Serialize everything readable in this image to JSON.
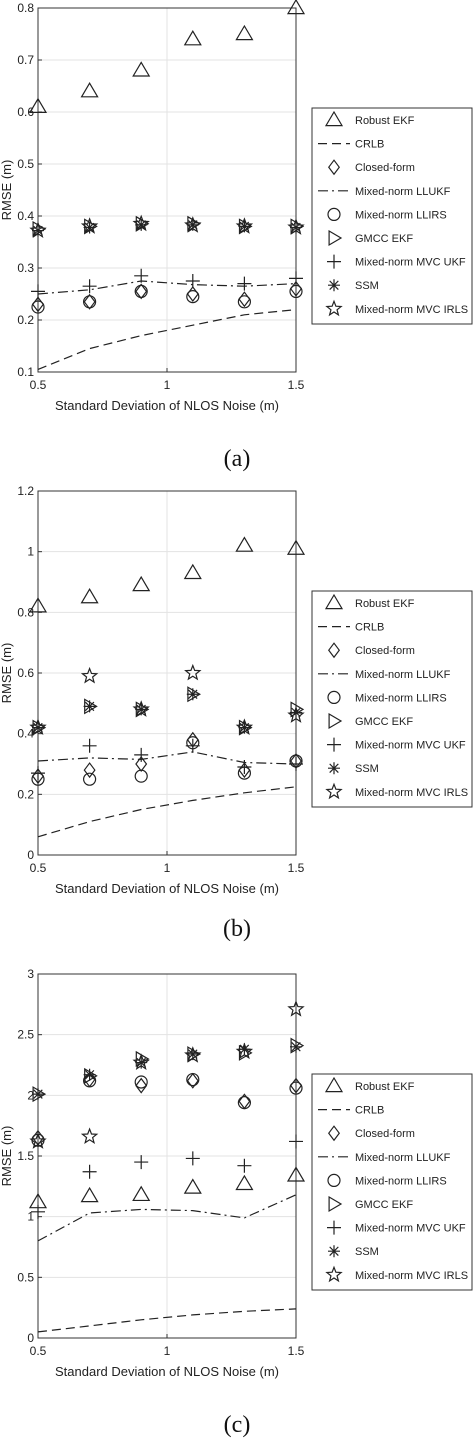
{
  "figure": {
    "captions": [
      "(a)",
      "(b)",
      "(c)"
    ]
  },
  "legend_entries": [
    {
      "label": "Robust EKF",
      "marker": "triangle-up"
    },
    {
      "label": "CRLB",
      "line": "dashed"
    },
    {
      "label": "Closed-form",
      "marker": "diamond"
    },
    {
      "label": "Mixed-norm LLUKF",
      "line": "dashdot"
    },
    {
      "label": "Mixed-norm LLIRS",
      "marker": "circle"
    },
    {
      "label": "GMCC EKF",
      "marker": "triangle-right"
    },
    {
      "label": "Mixed-norm MVC UKF",
      "marker": "plus"
    },
    {
      "label": "SSM",
      "marker": "asterisk"
    },
    {
      "label": "Mixed-norm MVC IRLS",
      "marker": "pentagram"
    }
  ],
  "chart_data": [
    {
      "type": "line",
      "caption": "(a)",
      "xlabel": "Standard Deviation of NLOS Noise (m)",
      "ylabel": "RMSE (m)",
      "xlim": [
        0.5,
        1.5
      ],
      "ylim": [
        0.1,
        0.8
      ],
      "xticks": [
        0.5,
        1,
        1.5
      ],
      "xtick_labels": [
        "0.5",
        "1",
        "1.5"
      ],
      "yticks": [
        0.1,
        0.2,
        0.3,
        0.4,
        0.5,
        0.6,
        0.7,
        0.8
      ],
      "ytick_labels": [
        "0.1",
        "0.2",
        "0.3",
        "0.4",
        "0.5",
        "0.6",
        "0.7",
        "0.8"
      ],
      "grid": true,
      "legend": "right, outside",
      "x": [
        0.5,
        0.7,
        0.9,
        1.1,
        1.3,
        1.5
      ],
      "series": [
        {
          "name": "Robust EKF",
          "values": [
            0.61,
            0.64,
            0.68,
            0.74,
            0.75,
            0.8
          ]
        },
        {
          "name": "CRLB",
          "values": [
            0.105,
            0.145,
            0.17,
            0.19,
            0.21,
            0.22
          ]
        },
        {
          "name": "Closed-form",
          "values": [
            0.23,
            0.235,
            0.255,
            0.25,
            0.24,
            0.26
          ]
        },
        {
          "name": "Mixed-norm LLUKF",
          "values": [
            0.25,
            0.258,
            0.275,
            0.268,
            0.265,
            0.27
          ]
        },
        {
          "name": "Mixed-norm LLIRS",
          "values": [
            0.225,
            0.235,
            0.255,
            0.245,
            0.235,
            0.255
          ]
        },
        {
          "name": "GMCC EKF",
          "values": [
            0.375,
            0.38,
            0.385,
            0.385,
            0.38,
            0.38
          ]
        },
        {
          "name": "Mixed-norm MVC UKF",
          "values": [
            0.255,
            0.265,
            0.285,
            0.275,
            0.27,
            0.28
          ]
        },
        {
          "name": "SSM",
          "values": [
            0.372,
            0.378,
            0.383,
            0.383,
            0.38,
            0.378
          ]
        },
        {
          "name": "Mixed-norm MVC IRLS",
          "values": [
            0.372,
            0.38,
            0.385,
            0.382,
            0.38,
            0.378
          ]
        }
      ]
    },
    {
      "type": "line",
      "caption": "(b)",
      "xlabel": "Standard Deviation of NLOS Noise (m)",
      "ylabel": "RMSE (m)",
      "xlim": [
        0.5,
        1.5
      ],
      "ylim": [
        0,
        1.2
      ],
      "xticks": [
        0.5,
        1,
        1.5
      ],
      "xtick_labels": [
        "0.5",
        "1",
        "1.5"
      ],
      "yticks": [
        0,
        0.2,
        0.4,
        0.6,
        0.8,
        1,
        1.2
      ],
      "ytick_labels": [
        "0",
        "0.2",
        "0.4",
        "0.6",
        "0.8",
        "1",
        "1.2"
      ],
      "grid": true,
      "legend": "right, outside",
      "x": [
        0.5,
        0.7,
        0.9,
        1.1,
        1.3,
        1.5
      ],
      "series": [
        {
          "name": "Robust EKF",
          "values": [
            0.82,
            0.85,
            0.89,
            0.93,
            1.02,
            1.01
          ]
        },
        {
          "name": "CRLB",
          "values": [
            0.06,
            0.11,
            0.15,
            0.18,
            0.205,
            0.225
          ]
        },
        {
          "name": "Closed-form",
          "values": [
            0.26,
            0.28,
            0.3,
            0.38,
            0.28,
            0.31
          ]
        },
        {
          "name": "Mixed-norm LLUKF",
          "values": [
            0.31,
            0.32,
            0.315,
            0.34,
            0.305,
            0.3
          ]
        },
        {
          "name": "Mixed-norm LLIRS",
          "values": [
            0.25,
            0.25,
            0.26,
            0.37,
            0.27,
            0.31
          ]
        },
        {
          "name": "GMCC EKF",
          "values": [
            0.42,
            0.49,
            0.48,
            0.53,
            0.42,
            0.48
          ]
        },
        {
          "name": "Mixed-norm MVC UKF",
          "values": [
            0.27,
            0.36,
            0.33,
            0.36,
            0.29,
            0.3
          ]
        },
        {
          "name": "SSM",
          "values": [
            0.42,
            0.49,
            0.48,
            0.53,
            0.42,
            0.47
          ]
        },
        {
          "name": "Mixed-norm MVC IRLS",
          "values": [
            0.42,
            0.59,
            0.48,
            0.6,
            0.42,
            0.46
          ]
        }
      ]
    },
    {
      "type": "line",
      "caption": "(c)",
      "xlabel": "Standard Deviation of NLOS Noise (m)",
      "ylabel": "RMSE (m)",
      "xlim": [
        0.5,
        1.5
      ],
      "ylim": [
        0,
        3
      ],
      "xticks": [
        0.5,
        1,
        1.5
      ],
      "xtick_labels": [
        "0.5",
        "1",
        "1.5"
      ],
      "yticks": [
        0,
        0.5,
        1,
        1.5,
        2,
        2.5,
        3
      ],
      "ytick_labels": [
        "0",
        "0.5",
        "1",
        "1.5",
        "2",
        "2.5",
        "3"
      ],
      "grid": true,
      "legend": "right, outside",
      "x": [
        0.5,
        0.7,
        0.9,
        1.1,
        1.3,
        1.5
      ],
      "series": [
        {
          "name": "Robust EKF",
          "values": [
            1.12,
            1.17,
            1.18,
            1.24,
            1.27,
            1.34
          ]
        },
        {
          "name": "CRLB",
          "values": [
            0.05,
            0.1,
            0.15,
            0.19,
            0.22,
            0.24
          ]
        },
        {
          "name": "Closed-form",
          "values": [
            1.65,
            2.13,
            2.08,
            2.12,
            1.95,
            2.08
          ]
        },
        {
          "name": "Mixed-norm LLUKF",
          "values": [
            0.8,
            1.03,
            1.06,
            1.05,
            0.99,
            1.18
          ]
        },
        {
          "name": "Mixed-norm LLIRS",
          "values": [
            1.63,
            2.12,
            2.11,
            2.13,
            1.94,
            2.06
          ]
        },
        {
          "name": "GMCC EKF",
          "values": [
            2.01,
            2.16,
            2.3,
            2.34,
            2.35,
            2.41
          ]
        },
        {
          "name": "Mixed-norm MVC UKF",
          "values": [
            1.04,
            1.37,
            1.45,
            1.48,
            1.42,
            1.62
          ]
        },
        {
          "name": "SSM",
          "values": [
            2.01,
            2.17,
            2.27,
            2.34,
            2.38,
            2.4
          ]
        },
        {
          "name": "Mixed-norm MVC IRLS",
          "values": [
            1.62,
            1.66,
            2.27,
            2.33,
            2.36,
            2.71
          ]
        }
      ]
    }
  ]
}
